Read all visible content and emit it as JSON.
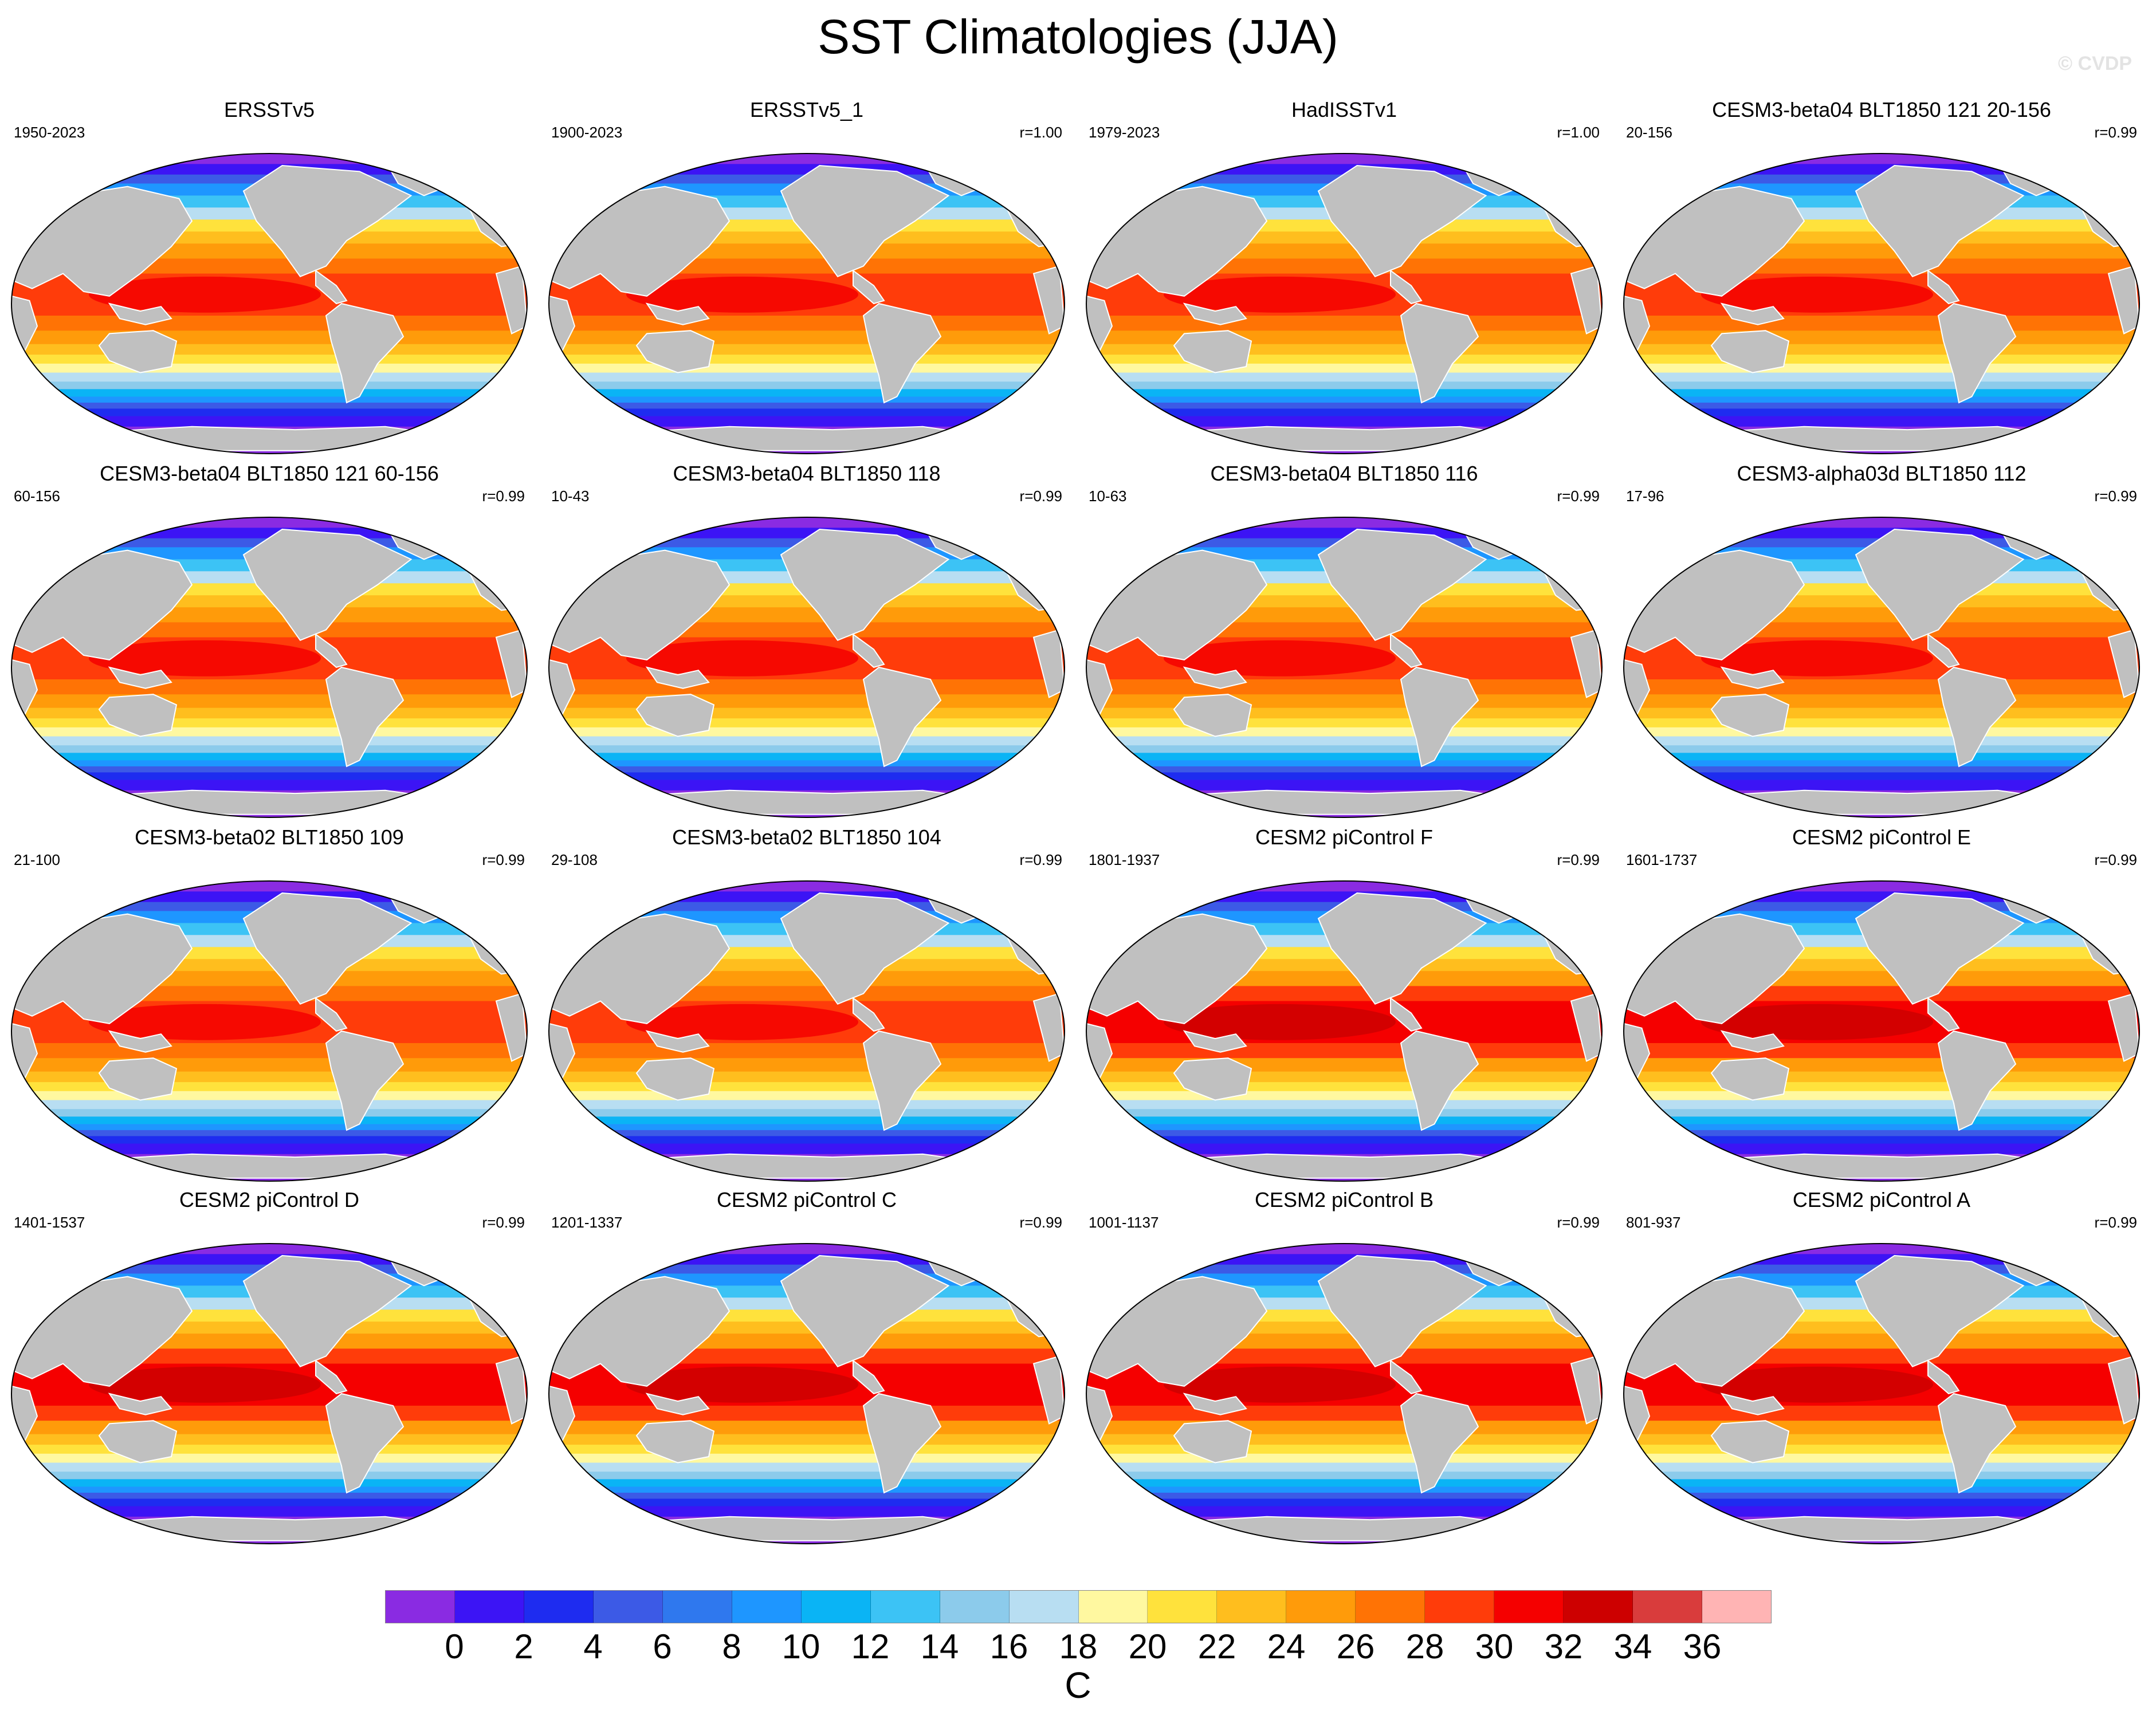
{
  "figure": {
    "title": "SST Climatologies (JJA)",
    "watermark": "© CVDP"
  },
  "panels": [
    {
      "title": "ERSSTv5",
      "years": "1950-2023",
      "r": "",
      "variant": "obs"
    },
    {
      "title": "ERSSTv5_1",
      "years": "1900-2023",
      "r": "r=1.00",
      "variant": "obs"
    },
    {
      "title": "HadISSTv1",
      "years": "1979-2023",
      "r": "r=1.00",
      "variant": "obs"
    },
    {
      "title": "CESM3-beta04 BLT1850 121 20-156",
      "years": "20-156",
      "r": "r=0.99",
      "variant": "model"
    },
    {
      "title": "CESM3-beta04 BLT1850 121 60-156",
      "years": "60-156",
      "r": "r=0.99",
      "variant": "model"
    },
    {
      "title": "CESM3-beta04 BLT1850 118",
      "years": "10-43",
      "r": "r=0.99",
      "variant": "model"
    },
    {
      "title": "CESM3-beta04 BLT1850 116",
      "years": "10-63",
      "r": "r=0.99",
      "variant": "model"
    },
    {
      "title": "CESM3-alpha03d BLT1850 112",
      "years": "17-96",
      "r": "r=0.99",
      "variant": "model"
    },
    {
      "title": "CESM3-beta02 BLT1850 109",
      "years": "21-100",
      "r": "r=0.99",
      "variant": "model"
    },
    {
      "title": "CESM3-beta02 BLT1850 104",
      "years": "29-108",
      "r": "r=0.99",
      "variant": "model"
    },
    {
      "title": "CESM2 piControl F",
      "years": "1801-1937",
      "r": "r=0.99",
      "variant": "warm"
    },
    {
      "title": "CESM2 piControl E",
      "years": "1601-1737",
      "r": "r=0.99",
      "variant": "warm"
    },
    {
      "title": "CESM2 piControl D",
      "years": "1401-1537",
      "r": "r=0.99",
      "variant": "warm"
    },
    {
      "title": "CESM2 piControl C",
      "years": "1201-1337",
      "r": "r=0.99",
      "variant": "warm"
    },
    {
      "title": "CESM2 piControl B",
      "years": "1001-1137",
      "r": "r=0.99",
      "variant": "warm"
    },
    {
      "title": "CESM2 piControl A",
      "years": "801-937",
      "r": "r=0.99",
      "variant": "warm"
    }
  ],
  "colorbar": {
    "units": "C",
    "colors": [
      "#8a2be2",
      "#3c14f5",
      "#1e2cf0",
      "#3c5ae6",
      "#2f78ee",
      "#1e96ff",
      "#0ab4f5",
      "#3cc3f5",
      "#8ccbeb",
      "#b8def2",
      "#fff8a0",
      "#ffe23c",
      "#ffbe1e",
      "#ff9b0a",
      "#ff7305",
      "#ff3c0a",
      "#f50000",
      "#cd0000",
      "#d93c3c",
      "#ffb4b4"
    ],
    "labels": [
      "0",
      "2",
      "4",
      "6",
      "8",
      "10",
      "12",
      "14",
      "16",
      "18",
      "20",
      "22",
      "24",
      "26",
      "28",
      "30",
      "32",
      "34",
      "36"
    ]
  },
  "map_style": {
    "land": "#c0c0c0",
    "polar_ice": "#8a2be2"
  }
}
